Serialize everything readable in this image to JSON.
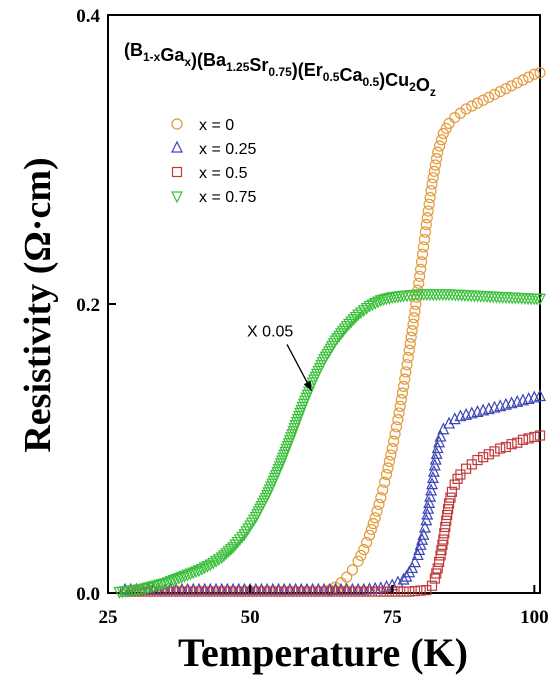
{
  "chart_data": {
    "type": "scatter",
    "title": "(B1-xGax)(Ba1.25Sr0.75)(Er0.5Ca0.5)Cu2Oz",
    "title_parts": [
      {
        "t": "(B",
        "sub": false
      },
      {
        "t": "1-x",
        "sub": true
      },
      {
        "t": "Ga",
        "sub": false
      },
      {
        "t": "x",
        "sub": true
      },
      {
        "t": ")(Ba",
        "sub": false
      },
      {
        "t": "1.25",
        "sub": true
      },
      {
        "t": "Sr",
        "sub": false
      },
      {
        "t": "0.75",
        "sub": true
      },
      {
        "t": ")(Er",
        "sub": false
      },
      {
        "t": "0.5",
        "sub": true
      },
      {
        "t": "Ca",
        "sub": false
      },
      {
        "t": "0.5",
        "sub": true
      },
      {
        "t": ")Cu",
        "sub": false
      },
      {
        "t": "2",
        "sub": true
      },
      {
        "t": "O",
        "sub": false
      },
      {
        "t": "z",
        "sub": true
      }
    ],
    "xlabel": "Temperature (K)",
    "ylabel": "Resistivity (Ω·cm)",
    "xlim": [
      25,
      101
    ],
    "ylim": [
      0,
      0.4
    ],
    "x_ticks": [
      25,
      50,
      75,
      100
    ],
    "x_tick_labels": [
      "25",
      "50",
      "75",
      "100"
    ],
    "y_ticks": [
      0,
      0.2,
      0.4
    ],
    "y_tick_labels": [
      "0.0",
      "0.2",
      "0.4"
    ],
    "grid": false,
    "legend_position": "upper-left",
    "annotation": {
      "text": "X 0.05",
      "x_from": 56.5,
      "y_from": 0.172,
      "x_to": 60.8,
      "y_to": 0.14
    },
    "series": [
      {
        "name": "x = 0",
        "marker": "circle",
        "color": "#E39A3C",
        "points": [
          [
            64,
            0.002
          ],
          [
            65,
            0.004
          ],
          [
            66,
            0.007
          ],
          [
            67,
            0.011
          ],
          [
            68,
            0.016
          ],
          [
            69,
            0.022
          ],
          [
            70,
            0.03
          ],
          [
            71,
            0.04
          ],
          [
            72,
            0.052
          ],
          [
            73,
            0.066
          ],
          [
            74,
            0.082
          ],
          [
            75,
            0.1
          ],
          [
            76,
            0.12
          ],
          [
            77,
            0.143
          ],
          [
            78,
            0.168
          ],
          [
            79,
            0.195
          ],
          [
            80,
            0.224
          ],
          [
            81,
            0.255
          ],
          [
            82,
            0.283
          ],
          [
            83,
            0.305
          ],
          [
            84,
            0.318
          ],
          [
            85,
            0.325
          ],
          [
            86,
            0.329
          ],
          [
            87,
            0.332
          ],
          [
            88,
            0.335
          ],
          [
            89,
            0.337
          ],
          [
            90,
            0.339
          ],
          [
            91,
            0.341
          ],
          [
            92,
            0.343
          ],
          [
            93,
            0.345
          ],
          [
            94,
            0.347
          ],
          [
            95,
            0.349
          ],
          [
            96,
            0.351
          ],
          [
            97,
            0.353
          ],
          [
            98,
            0.355
          ],
          [
            99,
            0.357
          ],
          [
            100,
            0.359
          ],
          [
            101,
            0.36
          ]
        ]
      },
      {
        "name": "x = 0.25",
        "marker": "triangle-up",
        "color": "#3B45B5",
        "points": [
          [
            28,
            0.002
          ],
          [
            35,
            0.002
          ],
          [
            42,
            0.002
          ],
          [
            50,
            0.002
          ],
          [
            58,
            0.002
          ],
          [
            65,
            0.002
          ],
          [
            70,
            0.002
          ],
          [
            73,
            0.003
          ],
          [
            75,
            0.005
          ],
          [
            76,
            0.007
          ],
          [
            77,
            0.009
          ],
          [
            77.5,
            0.011
          ],
          [
            78,
            0.014
          ],
          [
            78.5,
            0.017
          ],
          [
            79,
            0.021
          ],
          [
            79.5,
            0.026
          ],
          [
            80,
            0.033
          ],
          [
            80.5,
            0.04
          ],
          [
            81,
            0.05
          ],
          [
            81.5,
            0.062
          ],
          [
            82,
            0.075
          ],
          [
            82.5,
            0.088
          ],
          [
            83,
            0.1
          ],
          [
            83.5,
            0.108
          ],
          [
            84,
            0.113
          ],
          [
            85,
            0.117
          ],
          [
            86,
            0.12
          ],
          [
            87,
            0.122
          ],
          [
            88,
            0.123
          ],
          [
            89,
            0.124
          ],
          [
            90,
            0.125
          ],
          [
            91,
            0.126
          ],
          [
            92,
            0.127
          ],
          [
            93,
            0.128
          ],
          [
            94,
            0.129
          ],
          [
            95,
            0.13
          ],
          [
            96,
            0.131
          ],
          [
            97,
            0.132
          ],
          [
            98,
            0.133
          ],
          [
            99,
            0.134
          ],
          [
            100,
            0.135
          ],
          [
            101,
            0.136
          ]
        ]
      },
      {
        "name": "x = 0.5",
        "marker": "square",
        "color": "#C03A3A",
        "points": [
          [
            28,
            0.001
          ],
          [
            35,
            0.001
          ],
          [
            42,
            0.001
          ],
          [
            50,
            0.001
          ],
          [
            58,
            0.001
          ],
          [
            65,
            0.001
          ],
          [
            72,
            0.001
          ],
          [
            78,
            0.001
          ],
          [
            81,
            0.002
          ],
          [
            82,
            0.005
          ],
          [
            82.5,
            0.01
          ],
          [
            83,
            0.017
          ],
          [
            83.5,
            0.026
          ],
          [
            84,
            0.037
          ],
          [
            84.5,
            0.05
          ],
          [
            85,
            0.062
          ],
          [
            85.5,
            0.07
          ],
          [
            86,
            0.075
          ],
          [
            86.5,
            0.079
          ],
          [
            87,
            0.082
          ],
          [
            88,
            0.086
          ],
          [
            89,
            0.089
          ],
          [
            90,
            0.092
          ],
          [
            91,
            0.094
          ],
          [
            92,
            0.096
          ],
          [
            93,
            0.098
          ],
          [
            94,
            0.1
          ],
          [
            95,
            0.101
          ],
          [
            96,
            0.103
          ],
          [
            97,
            0.104
          ],
          [
            98,
            0.106
          ],
          [
            99,
            0.107
          ],
          [
            100,
            0.108
          ],
          [
            101,
            0.109
          ]
        ]
      },
      {
        "name": "x = 0.75",
        "marker": "triangle-down",
        "color": "#3BC03B",
        "points": [
          [
            27,
            0.001
          ],
          [
            29,
            0.002
          ],
          [
            31,
            0.003
          ],
          [
            33,
            0.005
          ],
          [
            35,
            0.007
          ],
          [
            37,
            0.01
          ],
          [
            39,
            0.013
          ],
          [
            41,
            0.016
          ],
          [
            43,
            0.02
          ],
          [
            45,
            0.025
          ],
          [
            47,
            0.032
          ],
          [
            49,
            0.041
          ],
          [
            51,
            0.053
          ],
          [
            53,
            0.068
          ],
          [
            55,
            0.086
          ],
          [
            57,
            0.106
          ],
          [
            59,
            0.127
          ],
          [
            61,
            0.146
          ],
          [
            63,
            0.162
          ],
          [
            65,
            0.175
          ],
          [
            67,
            0.185
          ],
          [
            69,
            0.193
          ],
          [
            71,
            0.199
          ],
          [
            73,
            0.203
          ],
          [
            75,
            0.205
          ],
          [
            77,
            0.206
          ],
          [
            80,
            0.207
          ],
          [
            85,
            0.207
          ],
          [
            90,
            0.206
          ],
          [
            95,
            0.205
          ],
          [
            100,
            0.204
          ],
          [
            101,
            0.204
          ]
        ]
      }
    ]
  }
}
